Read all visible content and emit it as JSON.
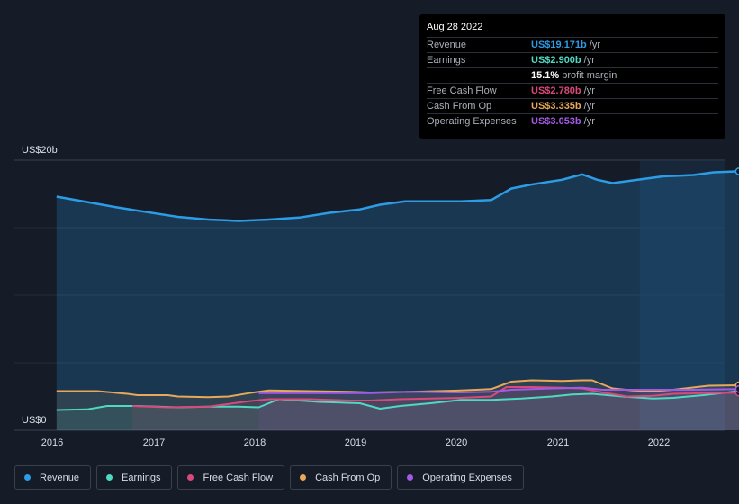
{
  "chart_data": {
    "type": "area",
    "y_axis": {
      "top_label": "US$20b",
      "bottom_label": "US$0",
      "ylim": [
        0,
        20
      ]
    },
    "x_ticks": [
      "2016",
      "2017",
      "2018",
      "2019",
      "2020",
      "2021",
      "2022"
    ],
    "x_range": [
      2015.9,
      2022.65
    ],
    "forecast_start": 2021.67,
    "series": [
      {
        "name": "Revenue",
        "color": "#2d9ce6",
        "fill": true,
        "x": [
          2015.9,
          2016.2,
          2016.5,
          2016.8,
          2017.1,
          2017.4,
          2017.7,
          2018.0,
          2018.3,
          2018.6,
          2018.9,
          2019.1,
          2019.35,
          2019.6,
          2019.9,
          2020.2,
          2020.4,
          2020.6,
          2020.9,
          2021.1,
          2021.25,
          2021.4,
          2021.7,
          2021.9,
          2022.2,
          2022.4,
          2022.65
        ],
        "y": [
          17.3,
          16.9,
          16.5,
          16.15,
          15.8,
          15.6,
          15.5,
          15.6,
          15.75,
          16.1,
          16.35,
          16.7,
          16.95,
          16.95,
          16.95,
          17.05,
          17.9,
          18.2,
          18.55,
          18.95,
          18.55,
          18.3,
          18.6,
          18.8,
          18.9,
          19.1,
          19.171
        ]
      },
      {
        "name": "Earnings",
        "color": "#4fd8c2",
        "fill": false,
        "x": [
          2015.9,
          2016.2,
          2016.4,
          2016.7,
          2017.1,
          2017.4,
          2017.7,
          2017.9,
          2018.1,
          2018.5,
          2018.9,
          2019.1,
          2019.3,
          2019.6,
          2019.9,
          2020.2,
          2020.5,
          2020.8,
          2021.0,
          2021.2,
          2021.5,
          2021.8,
          2022.0,
          2022.3,
          2022.65
        ],
        "y": [
          1.5,
          1.55,
          1.8,
          1.8,
          1.7,
          1.75,
          1.75,
          1.7,
          2.3,
          2.1,
          2.0,
          1.6,
          1.8,
          2.0,
          2.25,
          2.25,
          2.35,
          2.5,
          2.65,
          2.7,
          2.5,
          2.35,
          2.4,
          2.6,
          2.9
        ]
      },
      {
        "name": "Free Cash Flow",
        "color": "#d94a7a",
        "fill": false,
        "x": [
          2016.65,
          2017.0,
          2017.4,
          2017.8,
          2018.0,
          2018.4,
          2018.8,
          2019.0,
          2019.3,
          2019.6,
          2019.9,
          2020.2,
          2020.35,
          2020.6,
          2020.9,
          2021.1,
          2021.3,
          2021.55,
          2021.8,
          2022.0,
          2022.3,
          2022.65
        ],
        "y": [
          1.8,
          1.7,
          1.75,
          2.15,
          2.3,
          2.3,
          2.2,
          2.2,
          2.3,
          2.35,
          2.4,
          2.5,
          3.2,
          3.2,
          3.15,
          3.1,
          2.8,
          2.5,
          2.55,
          2.7,
          2.75,
          2.78
        ]
      },
      {
        "name": "Cash From Op",
        "color": "#e8a85a",
        "fill": false,
        "x": [
          2015.9,
          2016.3,
          2016.6,
          2016.7,
          2017.0,
          2017.1,
          2017.4,
          2017.6,
          2017.8,
          2018.0,
          2018.4,
          2018.8,
          2019.0,
          2019.4,
          2019.9,
          2020.2,
          2020.4,
          2020.6,
          2020.9,
          2021.1,
          2021.2,
          2021.4,
          2021.6,
          2021.8,
          2022.0,
          2022.35,
          2022.65
        ],
        "y": [
          2.9,
          2.9,
          2.7,
          2.6,
          2.6,
          2.5,
          2.45,
          2.5,
          2.75,
          2.95,
          2.9,
          2.85,
          2.8,
          2.85,
          2.95,
          3.05,
          3.6,
          3.7,
          3.65,
          3.7,
          3.7,
          3.1,
          2.95,
          2.9,
          3.0,
          3.3,
          3.335
        ]
      },
      {
        "name": "Operating Expenses",
        "color": "#a45ae6",
        "fill": false,
        "x": [
          2017.9,
          2018.4,
          2018.8,
          2019.0,
          2019.4,
          2019.9,
          2020.2,
          2020.4,
          2020.8,
          2021.1,
          2021.3,
          2021.6,
          2021.9,
          2022.2,
          2022.65
        ],
        "y": [
          2.75,
          2.75,
          2.75,
          2.75,
          2.85,
          2.8,
          2.85,
          3.0,
          3.1,
          3.15,
          3.0,
          3.0,
          3.0,
          3.0,
          3.053
        ]
      }
    ]
  },
  "tooltip": {
    "date": "Aug 28 2022",
    "rows": [
      {
        "label": "Revenue",
        "value": "US$19.171b",
        "unit": "/yr",
        "color": "#2d9ce6"
      },
      {
        "label": "Earnings",
        "value": "US$2.900b",
        "unit": "/yr",
        "color": "#4fd8c2"
      },
      {
        "label": "",
        "value": "15.1%",
        "unit": "profit margin",
        "color": "#ffffff"
      },
      {
        "label": "Free Cash Flow",
        "value": "US$2.780b",
        "unit": "/yr",
        "color": "#d94a7a"
      },
      {
        "label": "Cash From Op",
        "value": "US$3.335b",
        "unit": "/yr",
        "color": "#e8a85a"
      },
      {
        "label": "Operating Expenses",
        "value": "US$3.053b",
        "unit": "/yr",
        "color": "#a45ae6"
      }
    ]
  },
  "legend": [
    {
      "label": "Revenue",
      "color": "#2d9ce6"
    },
    {
      "label": "Earnings",
      "color": "#4fd8c2"
    },
    {
      "label": "Free Cash Flow",
      "color": "#d94a7a"
    },
    {
      "label": "Cash From Op",
      "color": "#e8a85a"
    },
    {
      "label": "Operating Expenses",
      "color": "#a45ae6"
    }
  ]
}
